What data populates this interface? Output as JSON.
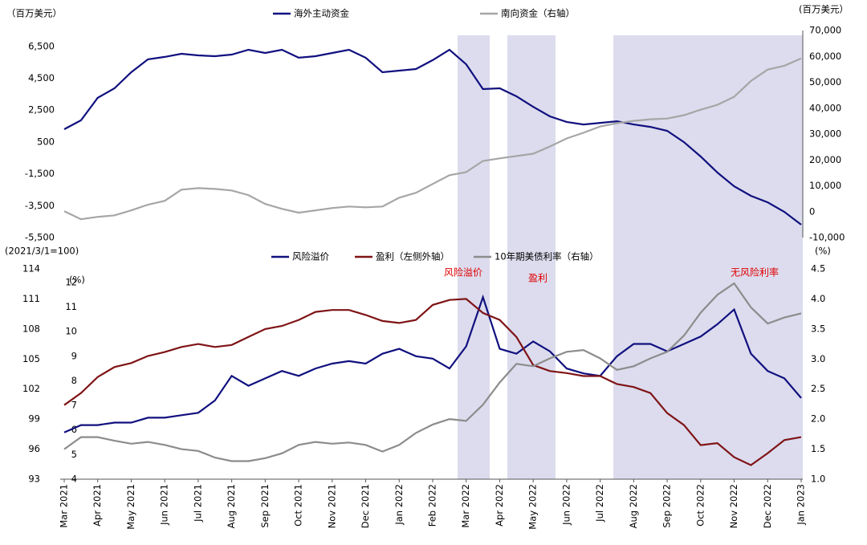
{
  "chart_data": [
    {
      "type": "line",
      "ylabel": "（百万美元）",
      "y2label": "(百万美元）",
      "ylim": [
        -5500,
        7500
      ],
      "yticks": [
        {
          "value": -5500,
          "label": "-5,500"
        },
        {
          "value": -3500,
          "label": "-3,500"
        },
        {
          "value": -1500,
          "label": "-1,500"
        },
        500,
        {
          "value": 2500,
          "label": "2,500"
        },
        {
          "value": 4500,
          "label": "4,500"
        },
        {
          "value": 6500,
          "label": "6,500"
        }
      ],
      "y2lim": [
        -10000,
        70000
      ],
      "y2ticks": [
        {
          "value": -10000,
          "label": "-10,000"
        },
        0,
        {
          "value": 10000,
          "label": "10,000"
        },
        {
          "value": 20000,
          "label": "20,000"
        },
        {
          "value": 30000,
          "label": "30,000"
        },
        {
          "value": 40000,
          "label": "40,000"
        },
        {
          "value": 50000,
          "label": "50,000"
        },
        {
          "value": 60000,
          "label": "60,000"
        },
        {
          "value": 70000,
          "label": "70,000"
        }
      ],
      "series": [
        {
          "name": "海外主动资金",
          "color": "#10107f",
          "values": [
            1300,
            1860,
            3270,
            3870,
            4880,
            5690,
            5840,
            6040,
            5940,
            5890,
            5990,
            6290,
            6090,
            6290,
            5790,
            5890,
            6090,
            6290,
            5790,
            4880,
            4980,
            5080,
            5640,
            6290,
            5380,
            3820,
            3870,
            3370,
            2710,
            2110,
            1760,
            1600,
            1700,
            1800,
            1600,
            1450,
            1200,
            490,
            -410,
            -1420,
            -2280,
            -2880,
            -3290,
            -3890,
            -4690
          ]
        },
        {
          "name": "南向资金（右轴）",
          "color": "#a6a6a6",
          "axis": "y2",
          "values": [
            200,
            -2900,
            -2000,
            -1400,
            500,
            2700,
            4200,
            8500,
            9100,
            8800,
            8200,
            6400,
            3000,
            1100,
            -400,
            500,
            1400,
            2000,
            1700,
            2000,
            5400,
            7300,
            10700,
            14100,
            15300,
            19600,
            20600,
            21500,
            22400,
            25200,
            28300,
            30500,
            32900,
            34200,
            35100,
            35700,
            36000,
            37300,
            39400,
            41300,
            44400,
            50500,
            54900,
            56400,
            59200
          ]
        }
      ]
    },
    {
      "type": "line",
      "ylabel": "(2021/3/1=100)",
      "y3label": "(%)",
      "y2label": "(%)",
      "categories": [
        "Mar 2021",
        null,
        "Apr 2021",
        null,
        "May 2021",
        null,
        "Jun 2021",
        null,
        "Jul 2021",
        null,
        "Aug 2021",
        null,
        "Sep 2021",
        null,
        "Oct 2021",
        null,
        "Nov 2021",
        null,
        "Dec 2021",
        null,
        "Jan 2022",
        null,
        "Feb 2022",
        null,
        "Mar 2022",
        null,
        "Apr 2022",
        null,
        "May 2022",
        null,
        "Jun 2022",
        null,
        "Jul 2022",
        null,
        "Aug 2022",
        null,
        "Sep 2022",
        null,
        "Oct 2022",
        null,
        "Nov 2022",
        null,
        "Dec 2022",
        null,
        "Jan 2023"
      ],
      "ylim": [
        93,
        114
      ],
      "yticks": [
        93,
        96,
        99,
        102,
        105,
        108,
        111,
        114
      ],
      "y3lim": [
        4,
        12.55
      ],
      "y3ticks": [
        4,
        5,
        6,
        7,
        8,
        9,
        10,
        11,
        12
      ],
      "y2lim": [
        1.0,
        4.5
      ],
      "y2ticks": [
        {
          "value": 1.0,
          "label": "1.0"
        },
        1.5,
        {
          "value": 2.0,
          "label": "2.0"
        },
        2.5,
        {
          "value": 3.0,
          "label": "3.0"
        },
        3.5,
        {
          "value": 4.0,
          "label": "4.0"
        },
        4.5
      ],
      "series": [
        {
          "name": "风险溢价",
          "color": "#10107f",
          "axis": "y3",
          "values": [
            5.9,
            6.2,
            6.2,
            6.3,
            6.3,
            6.5,
            6.5,
            6.6,
            6.7,
            7.2,
            8.2,
            7.8,
            8.1,
            8.4,
            8.2,
            8.5,
            8.7,
            8.8,
            8.7,
            9.1,
            9.3,
            9.0,
            8.9,
            8.5,
            9.4,
            11.4,
            9.3,
            9.1,
            9.6,
            9.2,
            8.5,
            8.3,
            8.2,
            9.0,
            9.5,
            9.5,
            9.2,
            9.5,
            9.8,
            10.3,
            10.9,
            9.1,
            8.4,
            8.1,
            7.3
          ]
        },
        {
          "name": "盈利（左侧外轴）",
          "color": "#7f1416",
          "values": [
            100.4,
            101.6,
            103.2,
            104.2,
            104.6,
            105.3,
            105.7,
            106.2,
            106.5,
            106.2,
            106.4,
            107.2,
            108.0,
            108.3,
            108.9,
            109.7,
            109.9,
            109.9,
            109.4,
            108.8,
            108.6,
            108.9,
            110.4,
            110.9,
            111.0,
            109.6,
            108.9,
            107.2,
            104.4,
            103.8,
            103.6,
            103.3,
            103.3,
            102.5,
            102.2,
            101.6,
            99.6,
            98.4,
            96.4,
            96.6,
            95.2,
            94.4,
            95.6,
            96.9,
            97.2
          ]
        },
        {
          "name": "10年期美债利率（右轴）",
          "color": "#8c8c8c",
          "axis": "y2",
          "values": [
            1.5,
            1.7,
            1.7,
            1.64,
            1.59,
            1.62,
            1.57,
            1.5,
            1.47,
            1.36,
            1.3,
            1.3,
            1.35,
            1.43,
            1.57,
            1.62,
            1.59,
            1.61,
            1.57,
            1.46,
            1.57,
            1.77,
            1.91,
            2.0,
            1.97,
            2.24,
            2.61,
            2.92,
            2.88,
            3.01,
            3.12,
            3.15,
            3.01,
            2.82,
            2.88,
            3.01,
            3.12,
            3.39,
            3.77,
            4.07,
            4.26,
            3.86,
            3.59,
            3.69,
            3.76
          ]
        }
      ],
      "annotations": [
        "风险溢价",
        "盈利",
        "无风险利率"
      ]
    }
  ]
}
